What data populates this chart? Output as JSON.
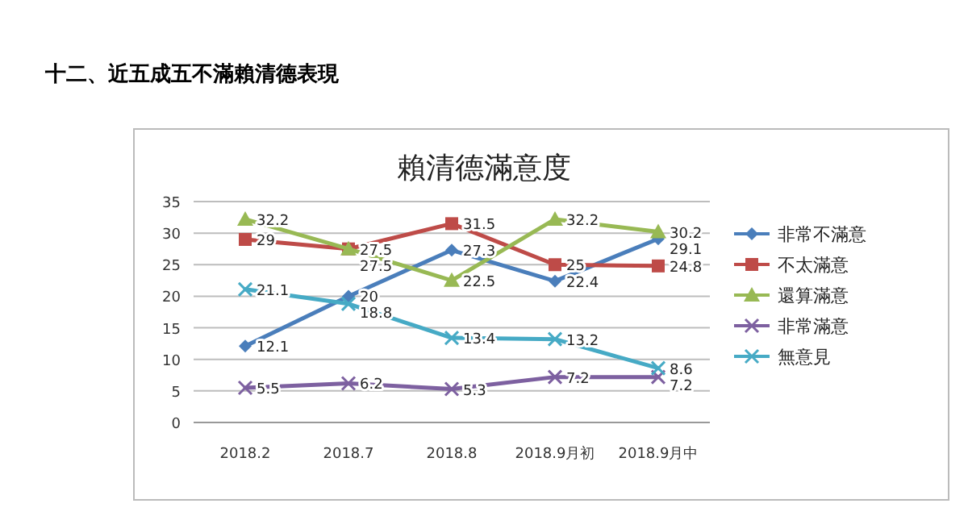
{
  "chart_data": {
    "type": "line",
    "title": "十二、近五成五不滿賴清德表現",
    "subtitle": "賴清德滿意度",
    "categories": [
      "2018.2",
      "2018.7",
      "2018.8",
      "2018.9月初",
      "2018.9月中"
    ],
    "series": [
      {
        "name": "非常不滿意",
        "color": "#4a7ebb",
        "marker": "diamond",
        "values": [
          12.1,
          20,
          27.3,
          22.4,
          29.1
        ]
      },
      {
        "name": "不太滿意",
        "color": "#be4b48",
        "marker": "square",
        "values": [
          29,
          27.5,
          31.5,
          25,
          24.8
        ]
      },
      {
        "name": "還算滿意",
        "color": "#98b954",
        "marker": "triangle",
        "values": [
          32.2,
          27.5,
          22.5,
          32.2,
          30.2
        ]
      },
      {
        "name": "非常滿意",
        "color": "#7d60a0",
        "marker": "cross",
        "values": [
          5.5,
          6.2,
          5.3,
          7.2,
          7.2
        ]
      },
      {
        "name": "無意見",
        "color": "#46aac5",
        "marker": "cross",
        "values": [
          21.1,
          18.8,
          13.4,
          13.2,
          8.6
        ]
      }
    ],
    "ylim": [
      0,
      35
    ],
    "yticks": [
      0,
      5,
      10,
      15,
      20,
      25,
      30,
      35
    ],
    "grid": "y",
    "legend": "right",
    "data_labels": true
  }
}
